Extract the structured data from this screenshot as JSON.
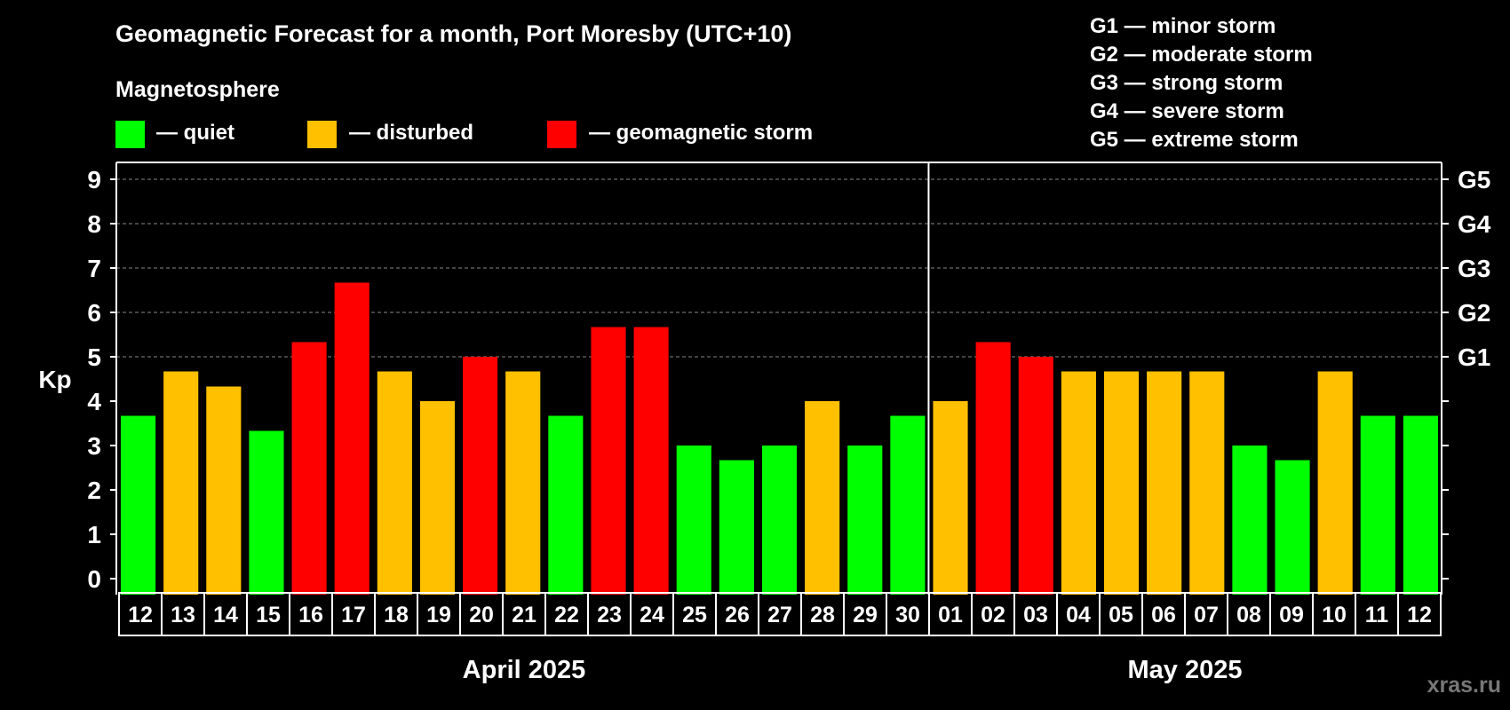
{
  "title": "Geomagnetic Forecast for a month, Port Moresby (UTC+10)",
  "watermark": "xras.ru",
  "legend": {
    "heading": "Magnetosphere",
    "items": [
      {
        "label": "— quiet",
        "color": "#00ff00"
      },
      {
        "label": "— disturbed",
        "color": "#ffc000"
      },
      {
        "label": "— geomagnetic storm",
        "color": "#ff0000"
      }
    ]
  },
  "storm_scale": [
    "G1 — minor storm",
    "G2 — moderate storm",
    "G3 — strong storm",
    "G4 — severe storm",
    "G5 — extreme storm"
  ],
  "colors": {
    "quiet": "#00ff00",
    "disturbed": "#ffc000",
    "storm": "#ff0000",
    "background": "#000000",
    "axis": "#ffffff",
    "grid": "#888888"
  },
  "chart_data": {
    "type": "bar",
    "title": "Geomagnetic Forecast for a month, Port Moresby (UTC+10)",
    "ylabel": "Kp",
    "ylim": [
      0,
      9
    ],
    "yticks": [
      "0",
      "1",
      "2",
      "3",
      "4",
      "5",
      "6",
      "7",
      "8",
      "9"
    ],
    "right_axis": [
      {
        "kp": 5,
        "label": "G1"
      },
      {
        "kp": 6,
        "label": "G2"
      },
      {
        "kp": 7,
        "label": "G3"
      },
      {
        "kp": 8,
        "label": "G4"
      },
      {
        "kp": 9,
        "label": "G5"
      }
    ],
    "grid": "dashed at Kp 5-9",
    "categories": [
      "12",
      "13",
      "14",
      "15",
      "16",
      "17",
      "18",
      "19",
      "20",
      "21",
      "22",
      "23",
      "24",
      "25",
      "26",
      "27",
      "28",
      "29",
      "30",
      "01",
      "02",
      "03",
      "04",
      "05",
      "06",
      "07",
      "08",
      "09",
      "10",
      "11",
      "12"
    ],
    "values": [
      3.67,
      4.67,
      4.33,
      3.33,
      5.33,
      6.67,
      4.67,
      4.0,
      5.0,
      4.67,
      3.67,
      5.67,
      5.67,
      3.0,
      2.67,
      3.0,
      4.0,
      3.0,
      3.67,
      4.0,
      5.33,
      5.0,
      4.67,
      4.67,
      4.67,
      4.67,
      3.0,
      2.67,
      4.67,
      3.67,
      3.67
    ],
    "levels": [
      "quiet",
      "disturbed",
      "disturbed",
      "quiet",
      "storm",
      "storm",
      "disturbed",
      "disturbed",
      "storm",
      "disturbed",
      "quiet",
      "storm",
      "storm",
      "quiet",
      "quiet",
      "quiet",
      "disturbed",
      "quiet",
      "quiet",
      "disturbed",
      "storm",
      "storm",
      "disturbed",
      "disturbed",
      "disturbed",
      "disturbed",
      "quiet",
      "quiet",
      "disturbed",
      "quiet",
      "quiet"
    ],
    "months": [
      {
        "label": "April 2025",
        "start": 0,
        "count": 19
      },
      {
        "label": "May 2025",
        "start": 19,
        "count": 12
      }
    ]
  }
}
